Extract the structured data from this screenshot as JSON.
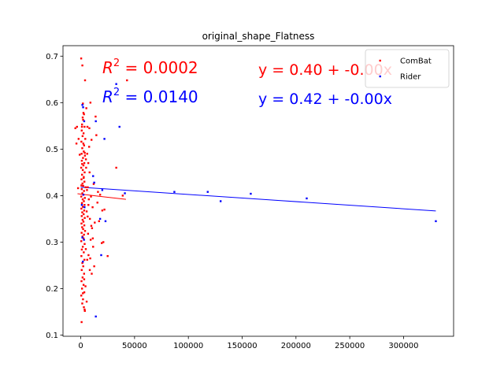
{
  "chart_data": {
    "type": "scatter",
    "title": "original_shape_Flatness",
    "xlabel": "",
    "ylabel": "",
    "xlim": [
      -16500,
      346500
    ],
    "ylim": [
      0.0975,
      0.7225
    ],
    "xticks": [
      0,
      50000,
      100000,
      150000,
      200000,
      250000,
      300000
    ],
    "xtick_labels": [
      "0",
      "50000",
      "100000",
      "150000",
      "200000",
      "250000",
      "300000"
    ],
    "yticks": [
      0.1,
      0.2,
      0.3,
      0.4,
      0.5,
      0.6,
      0.7
    ],
    "ytick_labels": [
      "0.1",
      "0.2",
      "0.3",
      "0.4",
      "0.5",
      "0.6",
      "0.7"
    ],
    "grid": false,
    "legend": {
      "position": "top-right"
    },
    "series": [
      {
        "name": "ComBat",
        "color": "#ff0000",
        "fit": {
          "x": [
            -3000,
            42000
          ],
          "y": [
            0.404,
            0.392
          ]
        },
        "r2_label": "R^2 = 0.0002",
        "equation": "y = 0.40 + -0.00x",
        "points": [
          [
            400,
            0.695
          ],
          [
            1500,
            0.68
          ],
          [
            4000,
            0.648
          ],
          [
            2000,
            0.598
          ],
          [
            2500,
            0.578
          ],
          [
            1800,
            0.568
          ],
          [
            3000,
            0.575
          ],
          [
            2200,
            0.563
          ],
          [
            1200,
            0.553
          ],
          [
            3500,
            0.548
          ],
          [
            900,
            0.54
          ],
          [
            2600,
            0.534
          ],
          [
            1700,
            0.528
          ],
          [
            4200,
            0.522
          ],
          [
            600,
            0.516
          ],
          [
            3100,
            0.508
          ],
          [
            1400,
            0.502
          ],
          [
            2800,
            0.495
          ],
          [
            800,
            0.49
          ],
          [
            3900,
            0.486
          ],
          [
            2100,
            0.481
          ],
          [
            1000,
            0.475
          ],
          [
            3300,
            0.47
          ],
          [
            2500,
            0.465
          ],
          [
            400,
            0.46
          ],
          [
            1900,
            0.455
          ],
          [
            3600,
            0.45
          ],
          [
            1200,
            0.445
          ],
          [
            2800,
            0.44
          ],
          [
            700,
            0.435
          ],
          [
            3400,
            0.43
          ],
          [
            1600,
            0.426
          ],
          [
            2300,
            0.421
          ],
          [
            4500,
            0.418
          ],
          [
            900,
            0.414
          ],
          [
            3000,
            0.41
          ],
          [
            1500,
            0.405
          ],
          [
            2400,
            0.402
          ],
          [
            500,
            0.398
          ],
          [
            3800,
            0.395
          ],
          [
            1800,
            0.392
          ],
          [
            2900,
            0.388
          ],
          [
            1100,
            0.384
          ],
          [
            3500,
            0.38
          ],
          [
            2000,
            0.376
          ],
          [
            600,
            0.372
          ],
          [
            3200,
            0.368
          ],
          [
            1400,
            0.364
          ],
          [
            2700,
            0.36
          ],
          [
            900,
            0.356
          ],
          [
            3700,
            0.352
          ],
          [
            1700,
            0.348
          ],
          [
            2500,
            0.344
          ],
          [
            700,
            0.34
          ],
          [
            3300,
            0.336
          ],
          [
            1300,
            0.332
          ],
          [
            2200,
            0.328
          ],
          [
            4000,
            0.324
          ],
          [
            800,
            0.32
          ],
          [
            3000,
            0.316
          ],
          [
            1600,
            0.312
          ],
          [
            2600,
            0.308
          ],
          [
            500,
            0.302
          ],
          [
            3600,
            0.296
          ],
          [
            1900,
            0.29
          ],
          [
            1000,
            0.284
          ],
          [
            2800,
            0.278
          ],
          [
            600,
            0.27
          ],
          [
            3400,
            0.262
          ],
          [
            1500,
            0.255
          ],
          [
            2300,
            0.248
          ],
          [
            900,
            0.24
          ],
          [
            3100,
            0.232
          ],
          [
            1700,
            0.224
          ],
          [
            700,
            0.216
          ],
          [
            2600,
            0.208
          ],
          [
            1200,
            0.2
          ],
          [
            3300,
            0.192
          ],
          [
            500,
            0.185
          ],
          [
            2100,
            0.177
          ],
          [
            1400,
            0.168
          ],
          [
            2900,
            0.16
          ],
          [
            3800,
            0.152
          ],
          [
            800,
            0.128
          ],
          [
            1100,
            0.548
          ],
          [
            2400,
            0.512
          ],
          [
            3700,
            0.492
          ],
          [
            1300,
            0.468
          ],
          [
            2700,
            0.438
          ],
          [
            600,
            0.422
          ],
          [
            9000,
            0.6
          ],
          [
            8000,
            0.545
          ],
          [
            10000,
            0.52
          ],
          [
            6000,
            0.49
          ],
          [
            7000,
            0.47
          ],
          [
            5000,
            0.46
          ],
          [
            12000,
            0.425
          ],
          [
            6500,
            0.418
          ],
          [
            9500,
            0.398
          ],
          [
            7500,
            0.392
          ],
          [
            11000,
            0.375
          ],
          [
            5500,
            0.366
          ],
          [
            8500,
            0.35
          ],
          [
            13000,
            0.342
          ],
          [
            10500,
            0.33
          ],
          [
            6800,
            0.318
          ],
          [
            9200,
            0.305
          ],
          [
            11500,
            0.29
          ],
          [
            7200,
            0.272
          ],
          [
            8800,
            0.265
          ],
          [
            12500,
            0.248
          ],
          [
            10200,
            0.232
          ],
          [
            13800,
            0.57
          ],
          [
            14500,
            0.53
          ],
          [
            16000,
            0.408
          ],
          [
            18000,
            0.402
          ],
          [
            20000,
            0.368
          ],
          [
            17000,
            0.345
          ],
          [
            19500,
            0.298
          ],
          [
            21000,
            0.3
          ],
          [
            25000,
            0.27
          ],
          [
            33000,
            0.46
          ],
          [
            39000,
            0.4
          ],
          [
            43000,
            0.648
          ],
          [
            -5000,
            0.545
          ],
          [
            -3500,
            0.548
          ],
          [
            -2000,
            0.522
          ],
          [
            -4000,
            0.512
          ],
          [
            -1000,
            0.488
          ],
          [
            -2500,
            0.416
          ],
          [
            15500,
            0.385
          ],
          [
            22000,
            0.37
          ],
          [
            5200,
            0.588
          ],
          [
            6200,
            0.548
          ],
          [
            7800,
            0.505
          ],
          [
            4800,
            0.478
          ],
          [
            8200,
            0.45
          ],
          [
            5800,
            0.412
          ],
          [
            7100,
            0.38
          ],
          [
            6400,
            0.355
          ],
          [
            9800,
            0.335
          ],
          [
            11200,
            0.308
          ],
          [
            4700,
            0.285
          ],
          [
            6000,
            0.262
          ],
          [
            8400,
            0.24
          ],
          [
            3200,
            0.22
          ],
          [
            4400,
            0.205
          ],
          [
            2000,
            0.19
          ],
          [
            5500,
            0.172
          ],
          [
            3600,
            0.155
          ]
        ]
      },
      {
        "name": "Rider",
        "color": "#0000ff",
        "fit": {
          "x": [
            0,
            330000
          ],
          "y": [
            0.418,
            0.367
          ]
        },
        "r2_label": "R^2 = 0.0140",
        "equation": "y = 0.42 + -0.00x",
        "points": [
          [
            1500,
            0.595
          ],
          [
            33000,
            0.64
          ],
          [
            36000,
            0.548
          ],
          [
            14000,
            0.56
          ],
          [
            22000,
            0.522
          ],
          [
            11500,
            0.442
          ],
          [
            12500,
            0.428
          ],
          [
            20000,
            0.412
          ],
          [
            41000,
            0.405
          ],
          [
            87000,
            0.408
          ],
          [
            118000,
            0.408
          ],
          [
            158000,
            0.404
          ],
          [
            210000,
            0.394
          ],
          [
            130000,
            0.388
          ],
          [
            330000,
            0.345
          ],
          [
            23000,
            0.345
          ],
          [
            18000,
            0.35
          ],
          [
            19000,
            0.272
          ],
          [
            14000,
            0.14
          ],
          [
            1500,
            0.31
          ],
          [
            3000,
            0.305
          ],
          [
            2000,
            0.258
          ],
          [
            2500,
            0.402
          ],
          [
            1000,
            0.38
          ],
          [
            3500,
            0.375
          ],
          [
            2200,
            0.59
          ],
          [
            3200,
            0.56
          ]
        ]
      }
    ]
  }
}
